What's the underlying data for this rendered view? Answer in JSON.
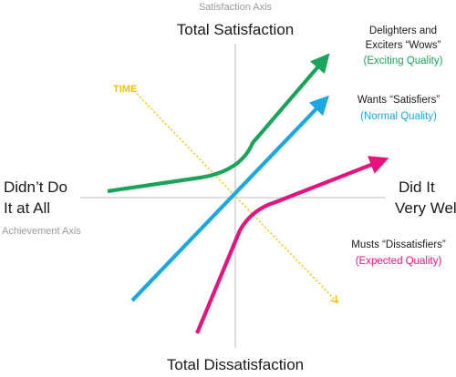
{
  "diagram": {
    "title": "",
    "axes": {
      "vertical_axis_label": "Satisfaction Axis",
      "top_label": "Total Satisfaction",
      "bottom_label": "Total Dissatisfaction",
      "left_label": [
        "Didn’t Do",
        "It at All"
      ],
      "horizontal_axis_label": "Achievement Axis",
      "right_label": [
        "Did It",
        "Very Well"
      ]
    },
    "time_label": "TIME",
    "curves": [
      {
        "key": "delighters",
        "name_lines": [
          "Delighters and",
          "Exciters “Wows”"
        ],
        "sub_label": "(Exciting Quality)",
        "color": "#1aa35a"
      },
      {
        "key": "satisfiers",
        "name_lines": [
          "Wants “Satisfiers”"
        ],
        "sub_label": "(Normal Quality)",
        "color": "#1ba8e0"
      },
      {
        "key": "dissatisfiers",
        "name_lines": [
          "Musts “Dissatisfiers”"
        ],
        "sub_label": "(Expected Quality)",
        "color": "#e6137d"
      }
    ],
    "colors": {
      "axis": "#cccccc",
      "axis_label": "#9a9a9a",
      "main_text": "#1a1a1a",
      "time": "#f2c200"
    }
  }
}
